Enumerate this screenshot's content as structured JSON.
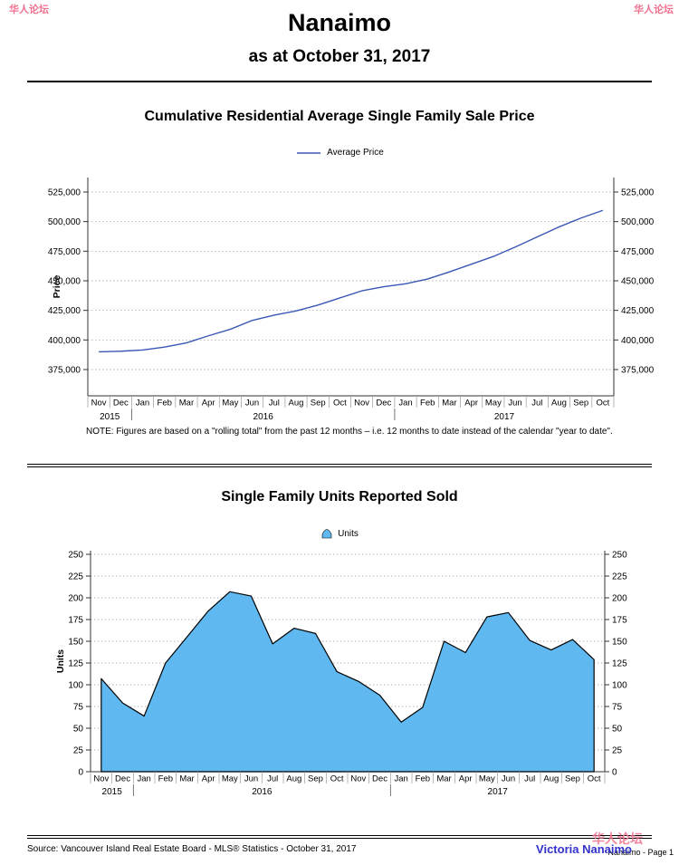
{
  "page": {
    "title": "Nanaimo",
    "subtitle": "as at October 31, 2017",
    "footer_source": "Source: Vancouver Island Real Estate Board - MLS® Statistics - October 31, 2017",
    "footer_page": "Nanaimo - Page 1"
  },
  "note": "NOTE:  Figures are based on a \"rolling total\" from the past 12 months – i.e. 12 months to date instead of the calendar \"year to date\".",
  "watermarks": {
    "top_left": "华人论坛",
    "top_right": "华人论坛",
    "bottom_cn": "华人论坛",
    "bottom_en": "Victoria Nanaimo",
    "cn_color": "#f0718f",
    "en_color": "#3232cc"
  },
  "months": [
    "Nov",
    "Dec",
    "Jan",
    "Feb",
    "Mar",
    "Apr",
    "May",
    "Jun",
    "Jul",
    "Aug",
    "Sep",
    "Oct",
    "Nov",
    "Dec",
    "Jan",
    "Feb",
    "Mar",
    "Apr",
    "May",
    "Jun",
    "Jul",
    "Aug",
    "Sep",
    "Oct"
  ],
  "years": [
    {
      "label": "2015",
      "months": 2
    },
    {
      "label": "2016",
      "months": 12
    },
    {
      "label": "2017",
      "months": 10
    }
  ],
  "chart_data": [
    {
      "type": "line",
      "title": "Cumulative Residential Average Single Family Sale Price",
      "legend": "Average Price",
      "ylabel": "Price",
      "ylim": [
        375000,
        525000
      ],
      "ytick_step": 25000,
      "ytick_format": "comma",
      "color": "#3a57b5",
      "grid": true,
      "legend_position": "top-center",
      "values": [
        390000,
        390500,
        391500,
        394000,
        397500,
        403500,
        409000,
        416500,
        421000,
        424500,
        429500,
        435500,
        441500,
        445000,
        447500,
        451500,
        457500,
        464000,
        470500,
        478500,
        487000,
        495500,
        503000,
        509500
      ]
    },
    {
      "type": "area",
      "title": "Single Family Units Reported Sold",
      "legend": "Units",
      "ylabel": "Units",
      "ylim": [
        0,
        250
      ],
      "ytick_step": 25,
      "ytick_format": "plain",
      "fill": "#5fb9f0",
      "stroke": "#000000",
      "grid": true,
      "legend_position": "top-center",
      "values": [
        107,
        79,
        64,
        125,
        155,
        185,
        207,
        202,
        147,
        165,
        159,
        115,
        104,
        88,
        57,
        74,
        150,
        137,
        178,
        183,
        151,
        140,
        152,
        129
      ]
    }
  ]
}
